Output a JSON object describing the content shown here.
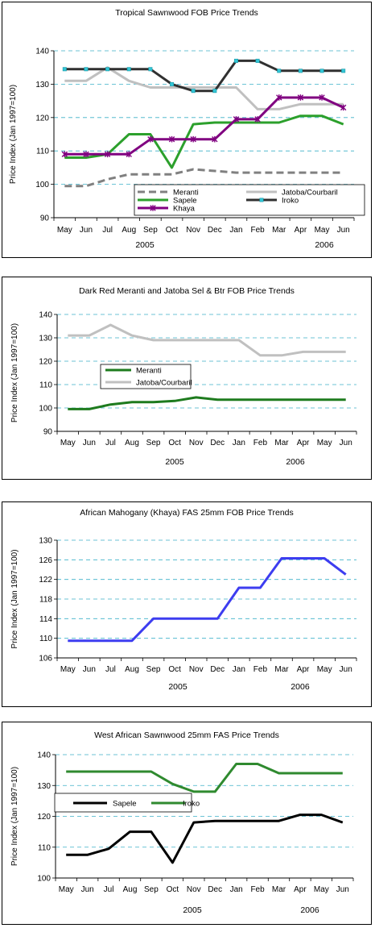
{
  "months": [
    "May",
    "Jun",
    "Jul",
    "Aug",
    "Sep",
    "Oct",
    "Nov",
    "Dec",
    "Jan",
    "Feb",
    "Mar",
    "Apr",
    "May",
    "Jun"
  ],
  "chart_data": [
    {
      "type": "line",
      "title": "Tropical Sawnwood FOB Price Trends",
      "ylabel": "Price Index (Jan 1997=100)",
      "year_labels": [
        "2005",
        "2006"
      ],
      "ylim": [
        90,
        140
      ],
      "yticks": [
        90,
        100,
        110,
        120,
        130,
        140
      ],
      "grid": true,
      "legend_position": "bottom-center",
      "series": [
        {
          "name": "Meranti",
          "color": "#808080",
          "style": "dashed",
          "marker": "none",
          "values": [
            99.5,
            99.5,
            101.5,
            103,
            103,
            103,
            104.5,
            104,
            103.5,
            103.5,
            103.5,
            103.5,
            103.5,
            103.5
          ]
        },
        {
          "name": "Jatoba/Courbaril",
          "color": "#c0c0c0",
          "style": "solid",
          "marker": "none",
          "values": [
            131,
            131,
            135,
            131,
            129,
            129,
            129,
            129,
            129,
            122.5,
            122.5,
            124,
            124,
            124
          ]
        },
        {
          "name": "Sapele",
          "color": "#2ca02c",
          "style": "solid",
          "marker": "none",
          "values": [
            108,
            108,
            109,
            115,
            115,
            105,
            118,
            118.5,
            118.5,
            118.5,
            118.5,
            120.5,
            120.5,
            118
          ]
        },
        {
          "name": "Iroko",
          "color": "#303030",
          "style": "solid",
          "marker": "square",
          "values": [
            134.5,
            134.5,
            134.5,
            134.5,
            134.5,
            130,
            128,
            128,
            137,
            137,
            134,
            134,
            134,
            134
          ]
        },
        {
          "name": "Khaya",
          "color": "#800080",
          "style": "solid",
          "marker": "star",
          "values": [
            109,
            109,
            109,
            109,
            113.5,
            113.5,
            113.5,
            113.5,
            119.5,
            119.5,
            126,
            126,
            126,
            123
          ]
        }
      ]
    },
    {
      "type": "line",
      "title": "Dark Red Meranti and Jatoba Sel & Btr FOB Price Trends",
      "ylabel": "Price Index (Jan 1997=100)",
      "year_labels": [
        "2005",
        "2006"
      ],
      "ylim": [
        90,
        140
      ],
      "yticks": [
        90,
        100,
        110,
        120,
        130,
        140
      ],
      "grid": true,
      "legend_position": "center-left",
      "series": [
        {
          "name": "Meranti",
          "color": "#1e7b1e",
          "style": "solid",
          "marker": "none",
          "values": [
            99.5,
            99.5,
            101.5,
            102.5,
            102.5,
            103,
            104.5,
            103.5,
            103.5,
            103.5,
            103.5,
            103.5,
            103.5,
            103.5
          ]
        },
        {
          "name": "Jatoba/Courbaril",
          "color": "#c0c0c0",
          "style": "solid",
          "marker": "none",
          "values": [
            131,
            131,
            135.5,
            131,
            129,
            129,
            129,
            129,
            129,
            122.5,
            122.5,
            124,
            124,
            124
          ]
        }
      ]
    },
    {
      "type": "line",
      "title": "African Mahogany (Khaya) FAS 25mm FOB Price Trends",
      "ylabel": "Price Index (Jan 1997=100)",
      "year_labels": [
        "2005",
        "2006"
      ],
      "ylim": [
        106,
        130
      ],
      "yticks": [
        106,
        110,
        114,
        118,
        122,
        126,
        130
      ],
      "grid": true,
      "legend_position": "none",
      "series": [
        {
          "name": "",
          "color": "#3d3df0",
          "style": "solid",
          "marker": "none",
          "values": [
            109.5,
            109.5,
            109.5,
            109.5,
            114,
            114,
            114,
            114,
            120.3,
            120.3,
            126.3,
            126.3,
            126.3,
            123
          ]
        }
      ]
    },
    {
      "type": "line",
      "title": "West African Sawnwood 25mm FAS Price Trends",
      "ylabel": "Price Index (Jan 1997=100)",
      "year_labels": [
        "2005",
        "2006"
      ],
      "ylim": [
        100,
        140
      ],
      "yticks": [
        100,
        110,
        120,
        130,
        140
      ],
      "grid": true,
      "legend_position": "center-left",
      "series": [
        {
          "name": "Sapele",
          "color": "#000000",
          "style": "solid",
          "marker": "none",
          "values": [
            107.5,
            107.5,
            109.5,
            115,
            115,
            105,
            118,
            118.5,
            118.5,
            118.5,
            118.5,
            120.5,
            120.5,
            118
          ]
        },
        {
          "name": "Iroko",
          "color": "#2f8a2f",
          "style": "solid",
          "marker": "none",
          "values": [
            134.5,
            134.5,
            134.5,
            134.5,
            134.5,
            130.5,
            128,
            128,
            137,
            137,
            134,
            134,
            134,
            134
          ]
        }
      ]
    }
  ]
}
